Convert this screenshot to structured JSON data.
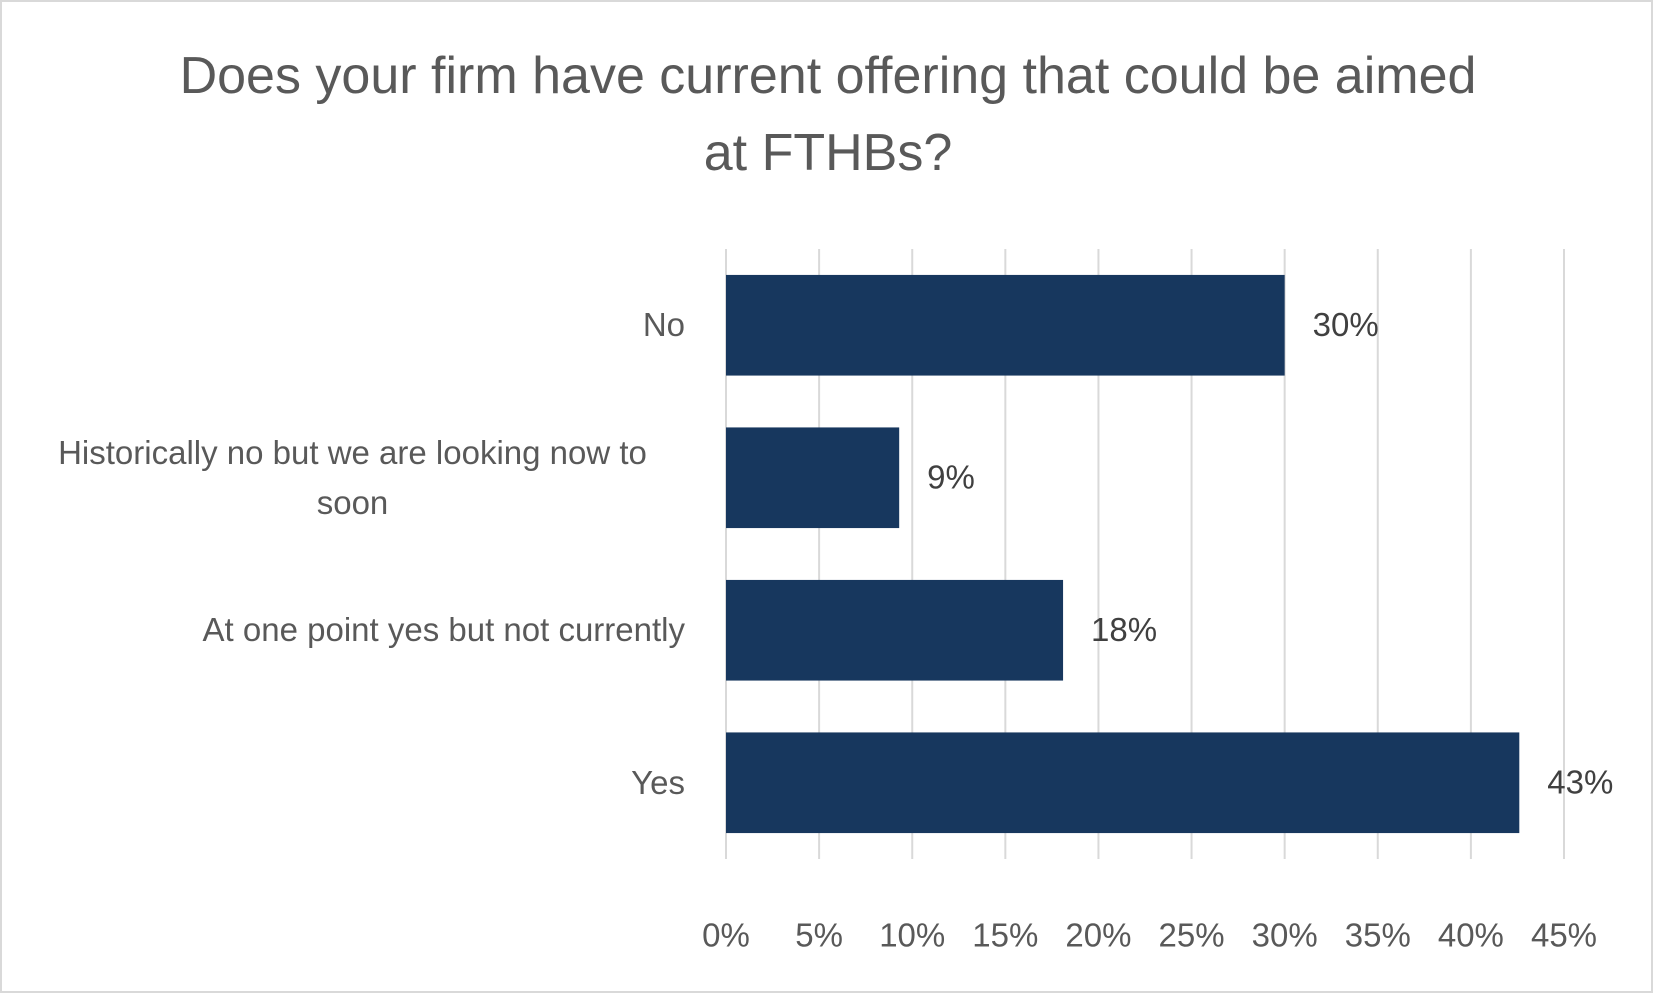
{
  "chart_data": {
    "type": "bar",
    "orientation": "horizontal",
    "title": "Does your firm have current offering that could be aimed at FTHBs?",
    "categories": [
      "No",
      "Historically no but we are looking now to soon",
      "At one point yes but not currently",
      "Yes"
    ],
    "values": [
      30,
      9.3,
      18.1,
      42.6
    ],
    "value_labels": [
      "30%",
      "9%",
      "18%",
      "43%"
    ],
    "color": "#17375e",
    "xlim": [
      0,
      45
    ],
    "xticks": [
      {
        "value": 0,
        "label": "0%"
      },
      {
        "value": 5,
        "label": "5%"
      },
      {
        "value": 10,
        "label": "10%"
      },
      {
        "value": 15,
        "label": "15%"
      },
      {
        "value": 20,
        "label": "20%"
      },
      {
        "value": 25,
        "label": "25%"
      },
      {
        "value": 30,
        "label": "30%"
      },
      {
        "value": 35,
        "label": "35%"
      },
      {
        "value": 40,
        "label": "40%"
      },
      {
        "value": 45,
        "label": "45%"
      }
    ],
    "grid": true
  }
}
